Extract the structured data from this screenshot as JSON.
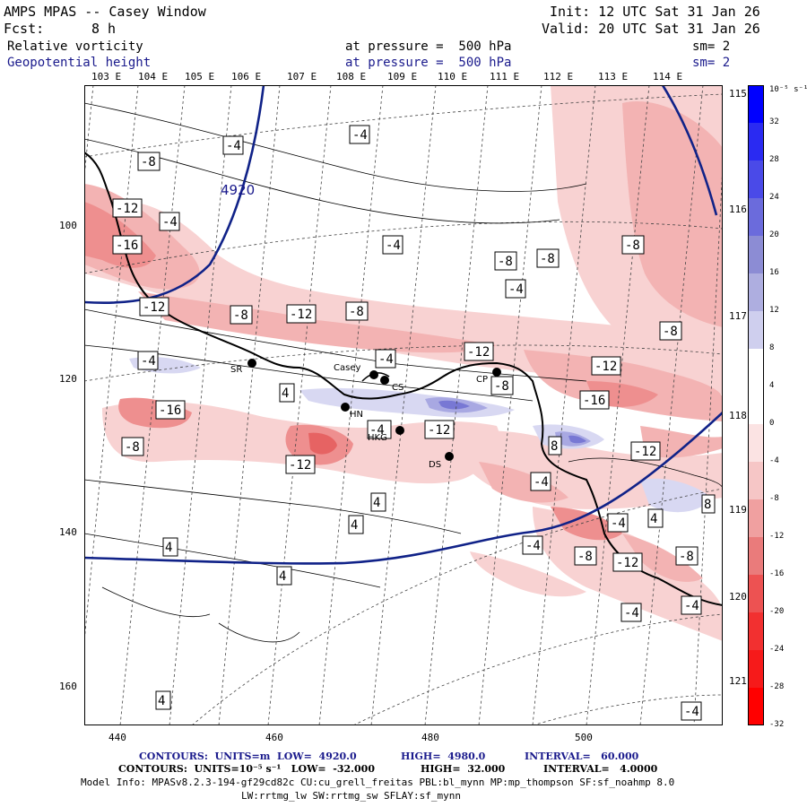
{
  "header": {
    "title": "AMPS MPAS -- Casey Window",
    "init": "Init: 12 UTC Sat 31 Jan 26",
    "fcst_label": "Fcst:",
    "fcst_value": "8 h",
    "valid": "Valid: 20 UTC Sat 31 Jan 26",
    "field1_name": "Relative vorticity",
    "field1_level": "at pressure =  500 hPa",
    "field1_sm": "sm= 2",
    "field2_name": "Geopotential height",
    "field2_level": "at pressure =  500 hPa",
    "field2_sm": "sm= 2"
  },
  "axes": {
    "lon_top": [
      "103 E",
      "104 E",
      "105 E",
      "106 E",
      "107 E",
      "108 E",
      "109 E",
      "110 E",
      "111 E",
      "112 E",
      "113 E",
      "114 E"
    ],
    "lon_right": [
      "115 E",
      "116 E",
      "117 E",
      "118 E",
      "119 E",
      "120 E",
      "121 E"
    ],
    "y_ticks": [
      "100",
      "120",
      "140",
      "160"
    ],
    "x_ticks": [
      "440",
      "460",
      "480",
      "500"
    ]
  },
  "colorbar": {
    "unit": "10⁻⁵ s⁻¹",
    "labels": [
      "32",
      "28",
      "24",
      "20",
      "16",
      "12",
      "8",
      "4",
      "0",
      "-4",
      "-8",
      "-12",
      "-16",
      "-20",
      "-24",
      "-28",
      "-32"
    ],
    "colors": [
      "#0000ff",
      "#2a2af2",
      "#4a4ae8",
      "#6b6bdc",
      "#8c8cd4",
      "#aeaee0",
      "#cfcfee",
      "#ffffff",
      "#ffffff",
      "#fbe3e3",
      "#f6c6c6",
      "#f0a0a0",
      "#ea7b7b",
      "#ed5252",
      "#f23030",
      "#f61a1a",
      "#ff0000"
    ]
  },
  "map": {
    "height_contour_label": "4920",
    "contour_labels": [
      "-4",
      "-8",
      "-12",
      "-16",
      "4",
      "8"
    ],
    "stations": [
      {
        "name": "SR"
      },
      {
        "name": "Casey"
      },
      {
        "name": "CS"
      },
      {
        "name": "HN"
      },
      {
        "name": "HKG"
      },
      {
        "name": "CP"
      },
      {
        "name": "DS"
      }
    ]
  },
  "footer": {
    "line1_label": "CONTOURS:  UNITS=m  LOW=  4920.0",
    "line1_high": "HIGH=  4980.0",
    "line1_interval": "INTERVAL=   60.000",
    "line2_label": "CONTOURS:  UNITS=10⁻⁵ s⁻¹   LOW=  -32.000",
    "line2_high": "HIGH=  32.000",
    "line2_interval": "INTERVAL=   4.0000",
    "model_info": "Model Info: MPASv8.2.3-194-gf29cd82c CU:cu_grell_freitas PBL:bl_mynn MP:mp_thompson SF:sf_noahmp 8.0",
    "model_info2": "LW:rrtmg_lw SW:rrtmg_sw SFLAY:sf_mynn"
  }
}
